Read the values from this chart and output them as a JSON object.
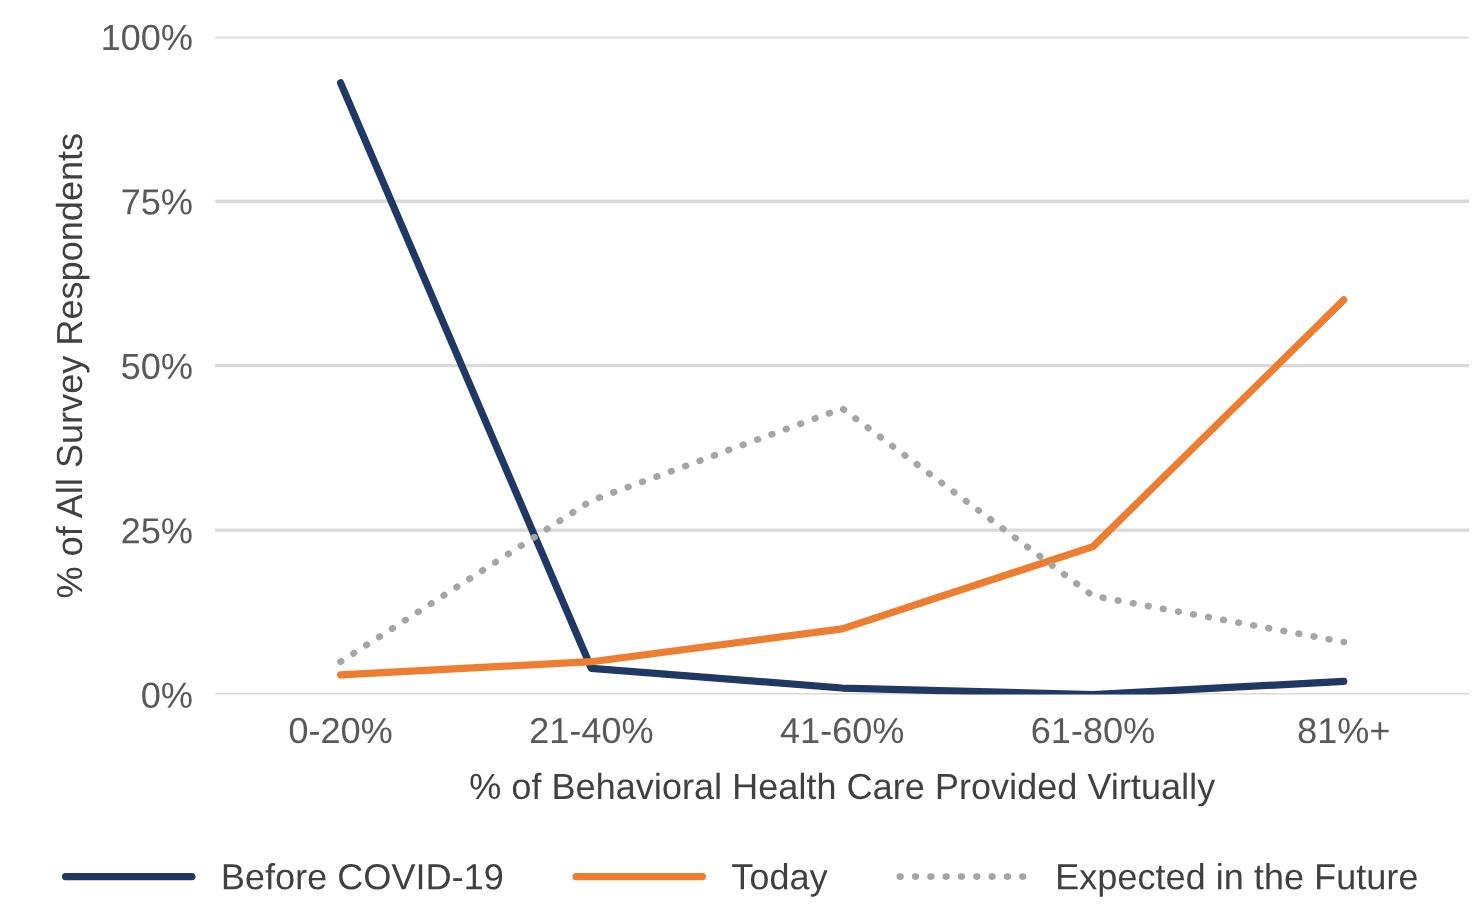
{
  "chart_data": {
    "type": "line",
    "xlabel": "% of Behavioral Health Care Provided Virtually",
    "ylabel": "% of All Survey Respondents",
    "categories": [
      "0-20%",
      "21-40%",
      "41-60%",
      "61-80%",
      "81%+"
    ],
    "series": [
      {
        "name": "Before COVID-19",
        "color": "#1f3864",
        "values": [
          93,
          4,
          1,
          0,
          2
        ],
        "line_style": "solid"
      },
      {
        "name": "Today",
        "color": "#ed7d31",
        "values": [
          3,
          5,
          10,
          22.5,
          60
        ],
        "line_style": "solid"
      },
      {
        "name": "Expected in the Future",
        "color": "#a5a5a5",
        "values": [
          5,
          29.5,
          43.5,
          15,
          8
        ],
        "line_style": "dotted"
      }
    ],
    "ylim": [
      0,
      100
    ],
    "yticks": [
      {
        "value": 0,
        "label": "0%"
      },
      {
        "value": 25,
        "label": "25%"
      },
      {
        "value": 50,
        "label": "50%"
      },
      {
        "value": 75,
        "label": "75%"
      },
      {
        "value": 100,
        "label": "100%"
      }
    ],
    "grid": "y",
    "legend": "bottom",
    "marker": "none"
  }
}
